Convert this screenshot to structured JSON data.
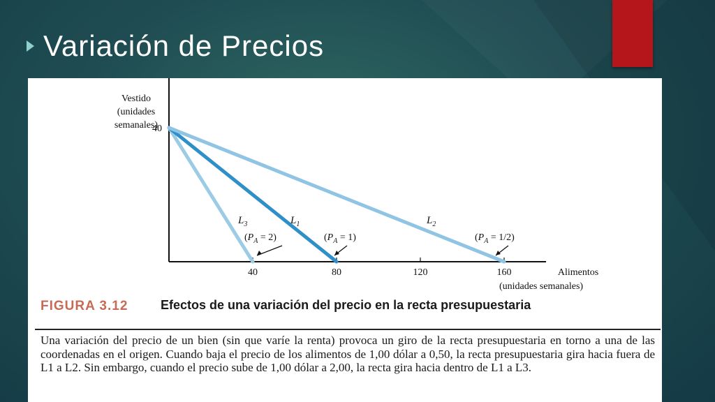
{
  "slide": {
    "title": "Variación de Precios",
    "background": "#1f4c52",
    "accent": "#b5161b",
    "bullet_icon": "arrow-right-icon"
  },
  "figure": {
    "number": "FIGURA 3.12",
    "title": "Efectos de una variación del precio en la recta presupuestaria",
    "caption": "Una variación del precio de un bien (sin que varíe la renta) provoca un giro de la recta presupuestaria en torno a una de las coordenadas en el origen. Cuando baja el precio de los alimentos de 1,00 dólar a 0,50, la recta presupuestaria gira hacia fuera de L1 a L2. Sin embargo, cuando el precio sube de 1,00 dólar a 2,00, la recta gira hacia dentro de L1 a L3.",
    "number_color": "#c76a56"
  },
  "chart_data": {
    "type": "line",
    "xlabel_lines": [
      "Alimentos",
      "(unidades semanales)"
    ],
    "ylabel_lines": [
      "Vestido",
      "(unidades",
      "semanales)"
    ],
    "xlim": [
      0,
      180
    ],
    "ylim": [
      0,
      56
    ],
    "x_ticks": [
      "40",
      "80",
      "120",
      "160"
    ],
    "y_ticks": [
      "40"
    ],
    "grid": false,
    "series": [
      {
        "name": "L3",
        "x": [
          0,
          40
        ],
        "y": [
          40,
          0
        ],
        "color": "#9ccbe6",
        "annotation": "(PA = 2)"
      },
      {
        "name": "L1",
        "x": [
          0,
          80
        ],
        "y": [
          40,
          0
        ],
        "color": "#2f8fc9",
        "annotation": "(PA = 1)"
      },
      {
        "name": "L2",
        "x": [
          0,
          160
        ],
        "y": [
          40,
          0
        ],
        "color": "#8fc4e4",
        "annotation": "(PA = 1/2)"
      }
    ]
  }
}
